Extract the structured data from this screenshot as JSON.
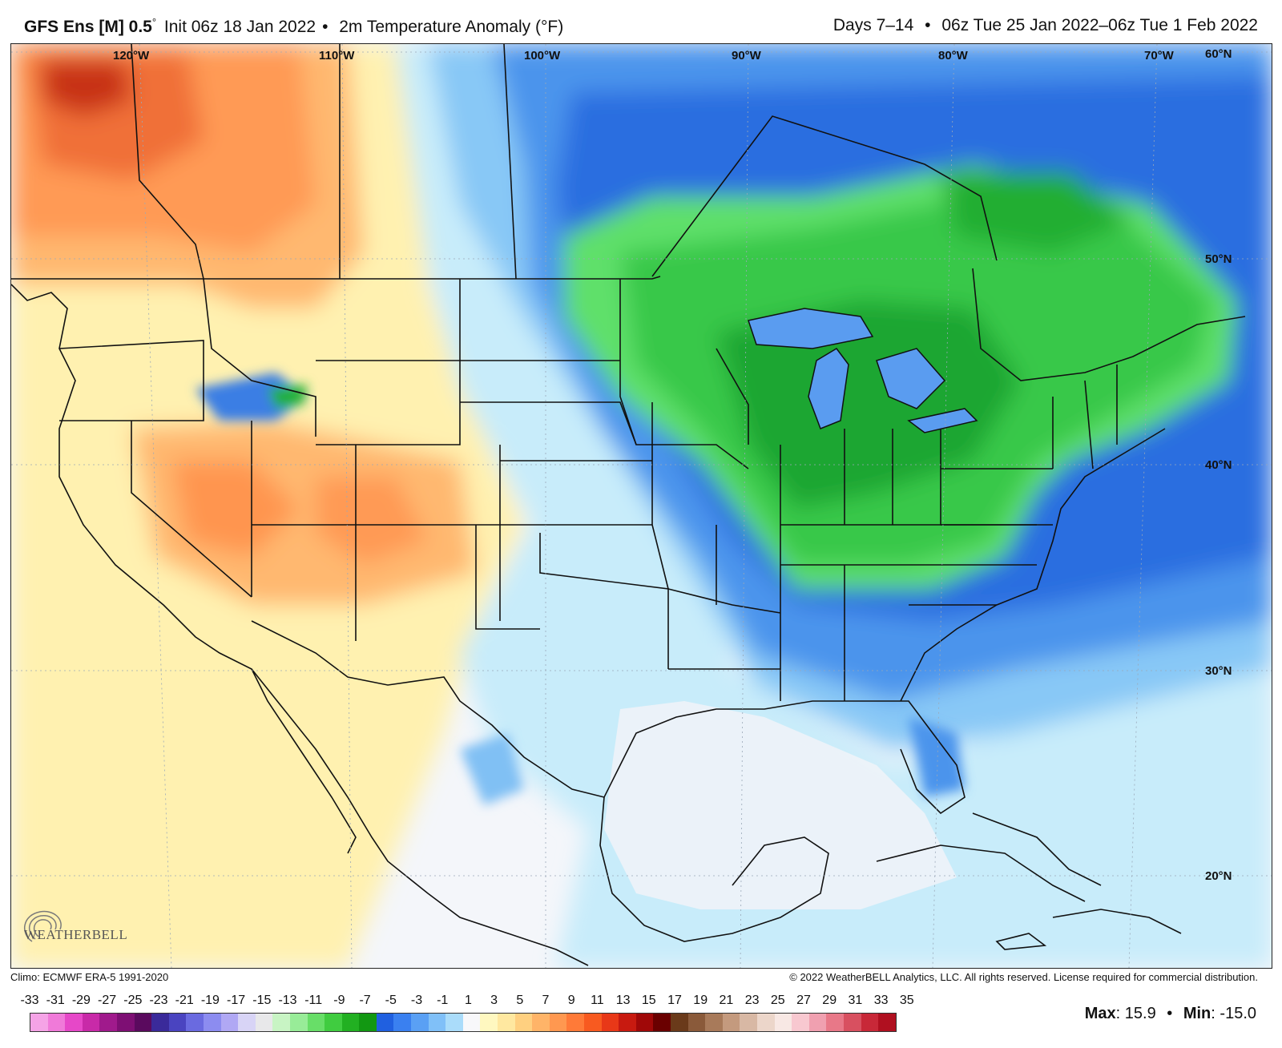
{
  "header": {
    "model": "GFS Ens [M] 0.5",
    "degree": "°",
    "init": "Init 06z 18 Jan 2022",
    "field": "2m Temperature Anomaly (°F)",
    "days": "Days 7–14",
    "valid": "06z Tue 25 Jan 2022–06z Tue 1 Feb 2022"
  },
  "map": {
    "longitudes": [
      "120°W",
      "110°W",
      "100°W",
      "90°W",
      "80°W",
      "70°W"
    ],
    "latitudes": [
      "60°N",
      "50°N",
      "40°N",
      "30°N",
      "20°N"
    ],
    "logo_text": "WEATHERBELL"
  },
  "footer": {
    "climo": "Climo: ECMWF ERA-5 1991-2020",
    "copyright": "© 2022 WeatherBELL Analytics, LLC. All rights reserved. License required for commercial distribution.",
    "max_label": "Max",
    "max_value": "15.9",
    "min_label": "Min",
    "min_value": "-15.0"
  },
  "colorbar": {
    "labels": [
      "-33",
      "-31",
      "-29",
      "-27",
      "-25",
      "-23",
      "-21",
      "-19",
      "-17",
      "-15",
      "-13",
      "-11",
      "-9",
      "-7",
      "-5",
      "-3",
      "-1",
      "1",
      "3",
      "5",
      "7",
      "9",
      "11",
      "13",
      "15",
      "17",
      "19",
      "21",
      "23",
      "25",
      "27",
      "29",
      "31",
      "33",
      "35"
    ],
    "colors": [
      "#f5a3e6",
      "#f07ad9",
      "#e648c8",
      "#c82aa8",
      "#a01a8c",
      "#7e0f74",
      "#5a0a5e",
      "#3a2a9a",
      "#4a44c0",
      "#6a6ae0",
      "#8c8cf0",
      "#b0a8f4",
      "#d8d4f6",
      "#e8e8ea",
      "#c8f4c4",
      "#98ec98",
      "#68de68",
      "#40cc40",
      "#22b022",
      "#129812",
      "#2060e0",
      "#3a80f0",
      "#5aa0f4",
      "#80c0f8",
      "#aadcfa",
      "#f8f8fa",
      "#fff8c0",
      "#ffe8a0",
      "#ffd080",
      "#ffb468",
      "#ff9850",
      "#ff7a38",
      "#f85a20",
      "#e83818",
      "#c81a10",
      "#a00808",
      "#6a0000",
      "#6a3a1a",
      "#8a5a3a",
      "#a87a5a",
      "#c49a7e",
      "#d8b8a4",
      "#ecd6ca",
      "#f8e8e4",
      "#f8c8d0",
      "#f0a0b0",
      "#e87888",
      "#d85060",
      "#c82838",
      "#b01020"
    ]
  }
}
